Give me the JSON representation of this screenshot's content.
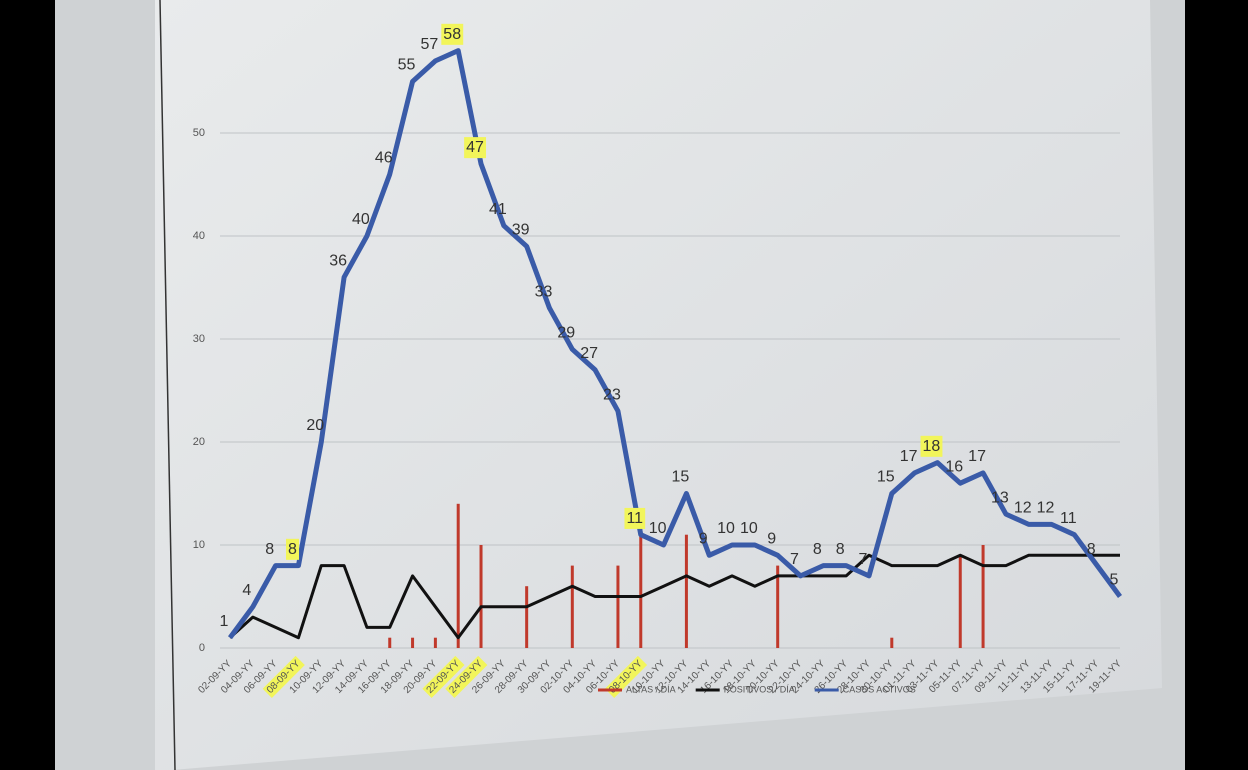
{
  "chart_data": {
    "type": "line",
    "categories": [
      "02-09-YY",
      "04-09-YY",
      "06-09-YY",
      "08-09-YY",
      "10-09-YY",
      "12-09-YY",
      "14-09-YY",
      "16-09-YY",
      "18-09-YY",
      "20-09-YY",
      "22-09-YY",
      "24-09-YY",
      "26-09-YY",
      "28-09-YY",
      "30-09-YY",
      "02-10-YY",
      "04-10-YY",
      "06-10-YY",
      "08-10-YY",
      "10-10-YY",
      "12-10-YY",
      "14-10-YY",
      "16-10-YY",
      "18-10-YY",
      "20-10-YY",
      "22-10-YY",
      "24-10-YY",
      "26-10-YY",
      "28-10-YY",
      "30-10-YY",
      "01-11-YY",
      "03-11-YY",
      "05-11-YY",
      "07-11-YY",
      "09-11-YY",
      "11-11-YY",
      "13-11-YY",
      "15-11-YY",
      "17-11-YY",
      "19-11-YY"
    ],
    "series": [
      {
        "name": "ALTAS / DÍA",
        "type": "bar",
        "color": "#c0392b",
        "values": [
          0,
          0,
          0,
          0,
          0,
          0,
          0,
          1,
          1,
          1,
          14,
          10,
          0,
          6,
          0,
          8,
          0,
          8,
          13,
          0,
          11,
          0,
          0,
          0,
          8,
          0,
          0,
          0,
          0,
          1,
          0,
          0,
          9,
          10,
          0,
          0,
          0,
          0,
          0,
          0
        ]
      },
      {
        "name": "POSITIVOS / DÍA",
        "type": "line",
        "color": "#111111",
        "values": [
          1,
          3,
          2,
          1,
          8,
          8,
          2,
          2,
          7,
          4,
          1,
          4,
          4,
          4,
          5,
          6,
          5,
          5,
          5,
          6,
          7,
          6,
          7,
          6,
          7,
          7,
          7,
          7,
          9,
          8,
          8,
          8,
          9,
          8,
          8,
          9,
          9,
          9,
          9,
          9
        ]
      },
      {
        "name": "CASOS ACTIVOS",
        "type": "line",
        "color": "#3a5ba8",
        "data_labels": true,
        "values": [
          1,
          4,
          8,
          8,
          20,
          36,
          40,
          46,
          55,
          57,
          58,
          47,
          41,
          39,
          33,
          29,
          27,
          23,
          11,
          10,
          15,
          9,
          10,
          10,
          9,
          7,
          8,
          8,
          7,
          15,
          17,
          18,
          16,
          17,
          13,
          12,
          12,
          11,
          8,
          5
        ]
      }
    ],
    "ylim": [
      0,
      60
    ],
    "yticks": [
      0,
      10,
      20,
      30,
      40,
      50
    ],
    "grid": true,
    "legend": "bottom",
    "highlight_color": "#f2f55a",
    "highlight_indices": [
      3,
      10,
      11,
      18,
      31
    ]
  }
}
